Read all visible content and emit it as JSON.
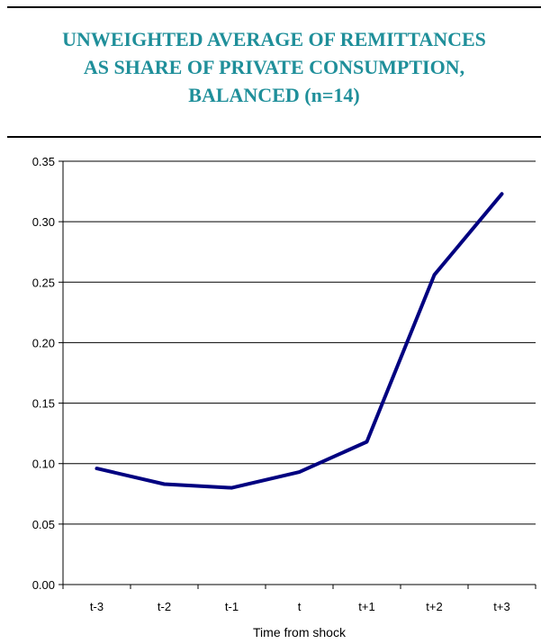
{
  "title_lines": [
    "UNWEIGHTED AVERAGE OF REMITTANCES",
    "AS SHARE OF PRIVATE CONSUMPTION,",
    "BALANCED (n=14)"
  ],
  "colors": {
    "title": "#1f8f9a",
    "series": "#000080",
    "grid": "#000000"
  },
  "chart_data": {
    "type": "line",
    "title": "UNWEIGHTED AVERAGE OF REMITTANCES AS SHARE OF PRIVATE CONSUMPTION, BALANCED (n=14)",
    "xlabel": "Time from shock",
    "ylabel": "",
    "categories": [
      "t-3",
      "t-2",
      "t-1",
      "t",
      "t+1",
      "t+2",
      "t+3"
    ],
    "series": [
      {
        "values": [
          0.096,
          0.083,
          0.08,
          0.093,
          0.118,
          0.256,
          0.323
        ]
      }
    ],
    "ylim": [
      0,
      0.35
    ],
    "yticks": [
      "0.00",
      "0.05",
      "0.10",
      "0.15",
      "0.20",
      "0.25",
      "0.30",
      "0.35"
    ],
    "grid": "horizontal",
    "legend": "none"
  }
}
